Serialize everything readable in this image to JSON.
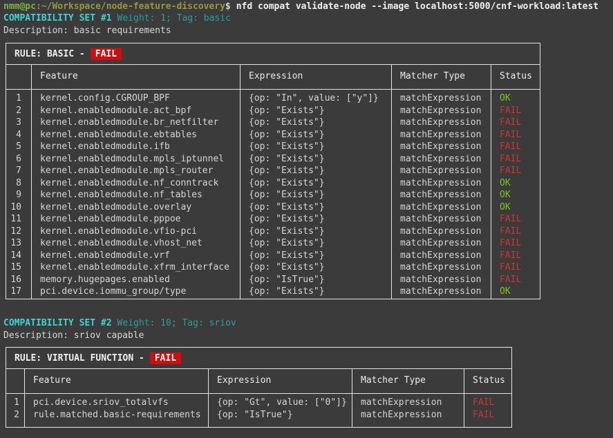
{
  "terminal": {
    "prompt": {
      "user_host": "nmm@pc",
      "colon": ":",
      "path": "~/Workspace/node-feature-discovery",
      "dollar": "$",
      "command": "nfd compat validate-node --image localhost:5000/cnf-workload:latest"
    }
  },
  "colors": {
    "background": "#3b3b3b",
    "border": "#e4e4e4",
    "text": "#d6d6d6",
    "bright_text": "#f0f0f0",
    "prompt_green": "#7cb342",
    "prompt_punct": "#b9824e",
    "prompt_path": "#97973f",
    "title_cyan": "#43d2d2",
    "meta_teal": "#2f9d9b",
    "ok": "#7cc51c",
    "fail": "#ce3432",
    "badge_bg": "#cf0f0f",
    "badge_text": "#ffffff"
  },
  "sets": [
    {
      "title": "COMPATIBILITY SET #1",
      "meta": "Weight: 1; Tag: basic",
      "description": "Description: basic requirements",
      "rule_label": "RULE: BASIC -",
      "rule_status": "FAIL",
      "columns": [
        "",
        "Feature",
        "Expression",
        "Matcher Type",
        "Status"
      ],
      "rows": [
        {
          "n": "1",
          "feature": "kernel.config.CGROUP_BPF",
          "expression": "{op: \"In\", value: [\"y\"]}",
          "matcher": "matchExpression",
          "status": "OK"
        },
        {
          "n": "2",
          "feature": "kernel.enabledmodule.act_bpf",
          "expression": "{op: \"Exists\"}",
          "matcher": "matchExpression",
          "status": "FAIL"
        },
        {
          "n": "3",
          "feature": "kernel.enabledmodule.br_netfilter",
          "expression": "{op: \"Exists\"}",
          "matcher": "matchExpression",
          "status": "FAIL"
        },
        {
          "n": "4",
          "feature": "kernel.enabledmodule.ebtables",
          "expression": "{op: \"Exists\"}",
          "matcher": "matchExpression",
          "status": "FAIL"
        },
        {
          "n": "5",
          "feature": "kernel.enabledmodule.ifb",
          "expression": "{op: \"Exists\"}",
          "matcher": "matchExpression",
          "status": "FAIL"
        },
        {
          "n": "6",
          "feature": "kernel.enabledmodule.mpls_iptunnel",
          "expression": "{op: \"Exists\"}",
          "matcher": "matchExpression",
          "status": "FAIL"
        },
        {
          "n": "7",
          "feature": "kernel.enabledmodule.mpls_router",
          "expression": "{op: \"Exists\"}",
          "matcher": "matchExpression",
          "status": "FAIL"
        },
        {
          "n": "8",
          "feature": "kernel.enabledmodule.nf_conntrack",
          "expression": "{op: \"Exists\"}",
          "matcher": "matchExpression",
          "status": "OK"
        },
        {
          "n": "9",
          "feature": "kernel.enabledmodule.nf_tables",
          "expression": "{op: \"Exists\"}",
          "matcher": "matchExpression",
          "status": "OK"
        },
        {
          "n": "10",
          "feature": "kernel.enabledmodule.overlay",
          "expression": "{op: \"Exists\"}",
          "matcher": "matchExpression",
          "status": "OK"
        },
        {
          "n": "11",
          "feature": "kernel.enabledmodule.pppoe",
          "expression": "{op: \"Exists\"}",
          "matcher": "matchExpression",
          "status": "FAIL"
        },
        {
          "n": "12",
          "feature": "kernel.enabledmodule.vfio-pci",
          "expression": "{op: \"Exists\"}",
          "matcher": "matchExpression",
          "status": "FAIL"
        },
        {
          "n": "13",
          "feature": "kernel.enabledmodule.vhost_net",
          "expression": "{op: \"Exists\"}",
          "matcher": "matchExpression",
          "status": "FAIL"
        },
        {
          "n": "14",
          "feature": "kernel.enabledmodule.vrf",
          "expression": "{op: \"Exists\"}",
          "matcher": "matchExpression",
          "status": "FAIL"
        },
        {
          "n": "15",
          "feature": "kernel.enabledmodule.xfrm_interface",
          "expression": "{op: \"Exists\"}",
          "matcher": "matchExpression",
          "status": "FAIL"
        },
        {
          "n": "16",
          "feature": "memory.hugepages.enabled",
          "expression": "{op: \"IsTrue\"}",
          "matcher": "matchExpression",
          "status": "FAIL"
        },
        {
          "n": "17",
          "feature": "pci.device.iommu_group/type",
          "expression": "{op: \"Exists\"}",
          "matcher": "matchExpression",
          "status": "OK"
        }
      ]
    },
    {
      "title": "COMPATIBILITY SET #2",
      "meta": "Weight: 10; Tag: sriov",
      "description": "Description: sriov capable",
      "rule_label": "RULE: VIRTUAL FUNCTION -",
      "rule_status": "FAIL",
      "columns": [
        "",
        "Feature",
        "Expression",
        "Matcher Type",
        "Status"
      ],
      "rows": [
        {
          "n": "1",
          "feature": "pci.device.sriov_totalvfs",
          "expression": "{op: \"Gt\", value: [\"0\"]}",
          "matcher": "matchExpression",
          "status": "FAIL"
        },
        {
          "n": "2",
          "feature": "rule.matched.basic-requirements",
          "expression": "{op: \"IsTrue\"}",
          "matcher": "matchExpression",
          "status": "FAIL"
        }
      ]
    }
  ]
}
